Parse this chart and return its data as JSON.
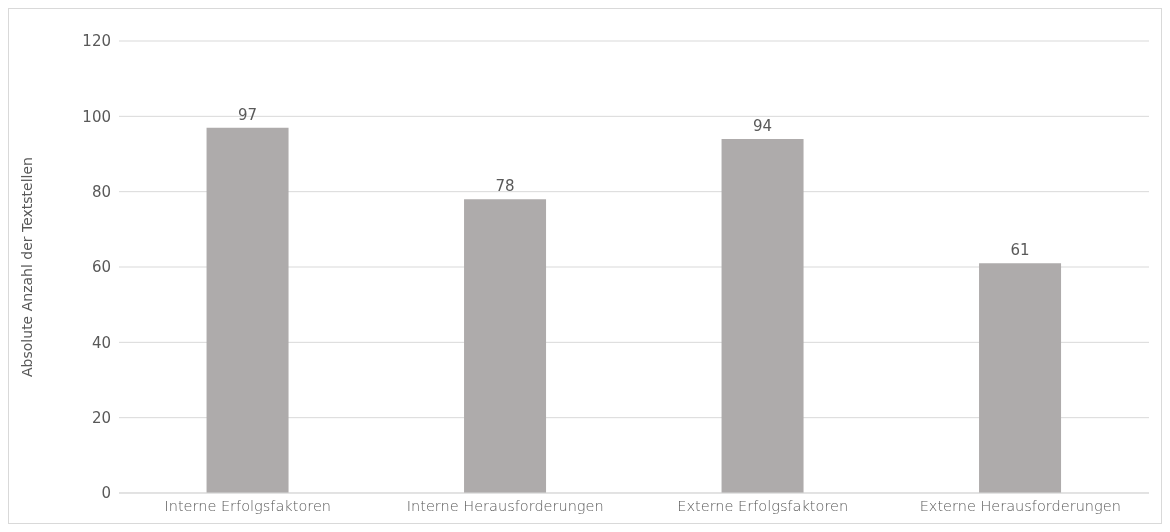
{
  "chart_data": {
    "type": "bar",
    "ylabel": "Absolute Anzahl der Textstellen",
    "categories": [
      "Interne Erfolgsfaktoren",
      "Interne Herausforderungen",
      "Externe Erfolgsfaktoren",
      "Externe Herausforderungen"
    ],
    "values": [
      97,
      78,
      94,
      61
    ],
    "color": "#aeabab",
    "ylim": [
      0,
      120
    ],
    "yticks": [
      0,
      20,
      40,
      60,
      80,
      100,
      120
    ],
    "grid": "y",
    "data_labels": true
  }
}
